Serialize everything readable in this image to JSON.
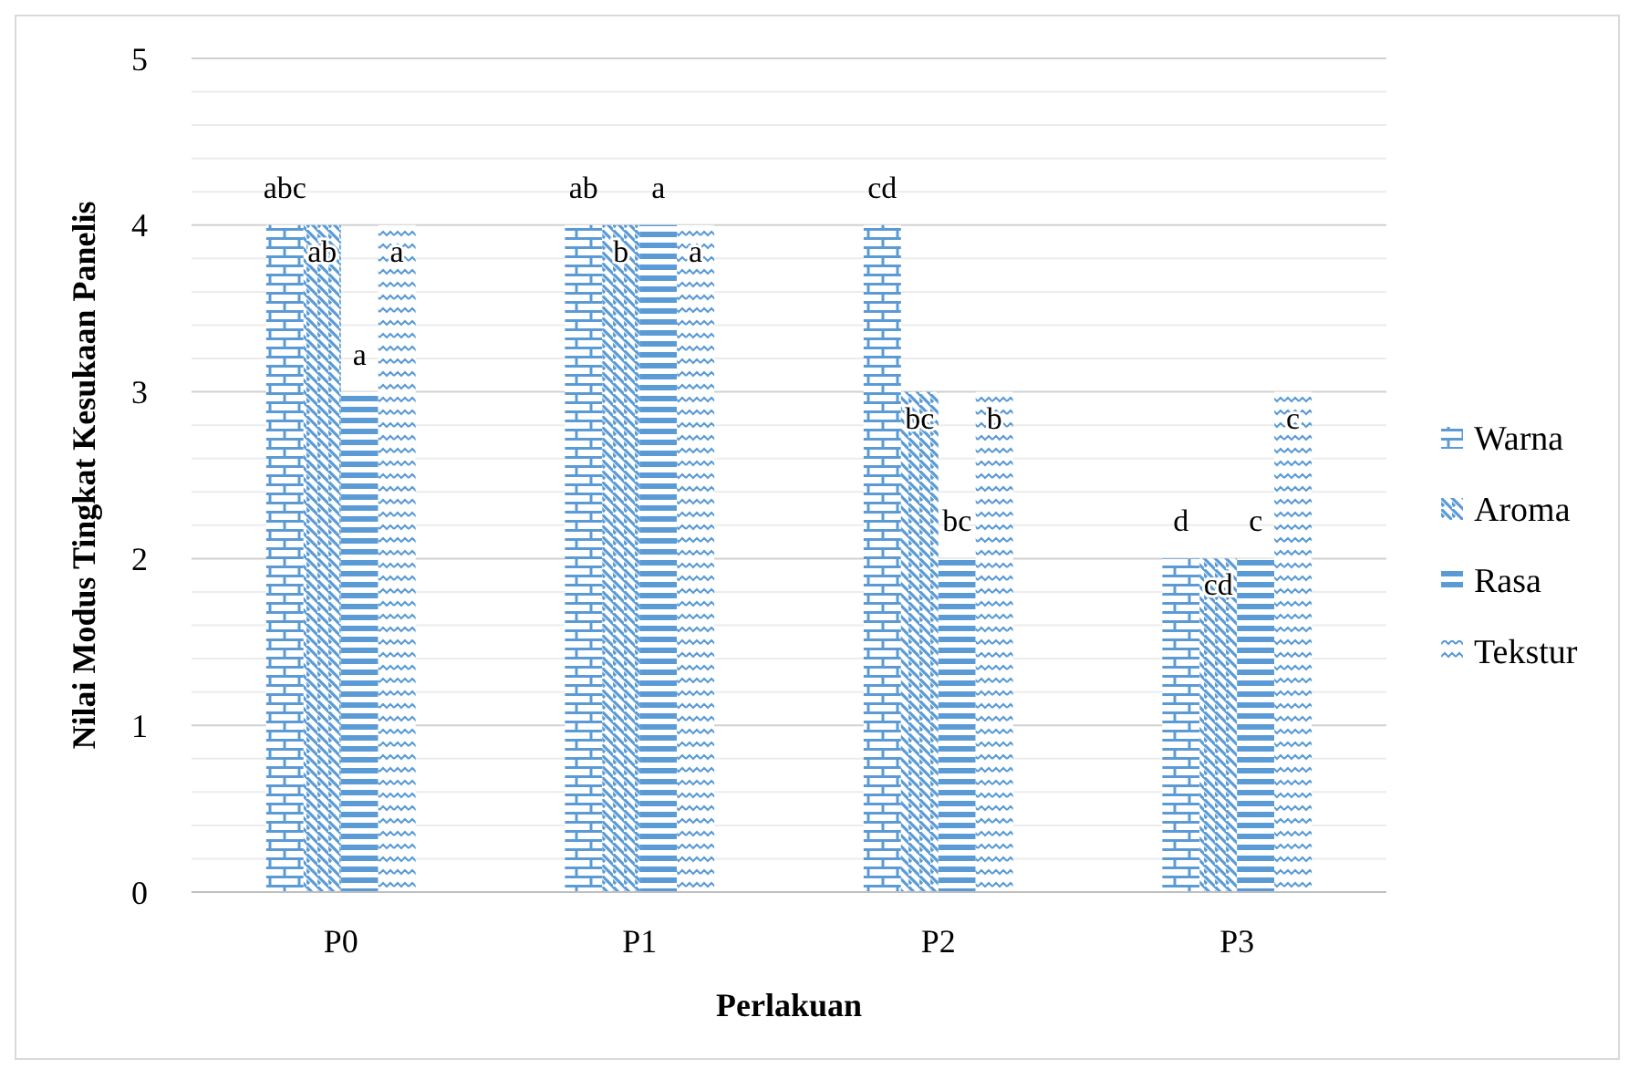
{
  "chart_data": {
    "type": "bar",
    "xlabel": "Perlakuan",
    "ylabel": "Nilai Modus Tingkat Kesukaan Panelis",
    "categories": [
      "P0",
      "P1",
      "P2",
      "P3"
    ],
    "series": [
      {
        "name": "Warna",
        "color": "#5b9bd5",
        "values": [
          4,
          4,
          4,
          2
        ],
        "value_labels": [
          "abc",
          "ab",
          "cd",
          "d"
        ]
      },
      {
        "name": "Aroma",
        "color": "#5b9bd5",
        "values": [
          4,
          4,
          3,
          2
        ],
        "value_labels": [
          "ab",
          "b",
          "bc",
          "cd"
        ]
      },
      {
        "name": "Rasa",
        "color": "#5b9bd5",
        "values": [
          3,
          4,
          2,
          2
        ],
        "value_labels": [
          "a",
          "a",
          "bc",
          "c"
        ]
      },
      {
        "name": "Tekstur",
        "color": "#5b9bd5",
        "values": [
          4,
          4,
          3,
          3
        ],
        "value_labels": [
          "a",
          "a",
          "b",
          "c"
        ]
      }
    ],
    "ylim": [
      0,
      5
    ],
    "yticks": [
      0,
      1,
      2,
      3,
      4,
      5
    ],
    "grid": true,
    "legend": "right"
  }
}
